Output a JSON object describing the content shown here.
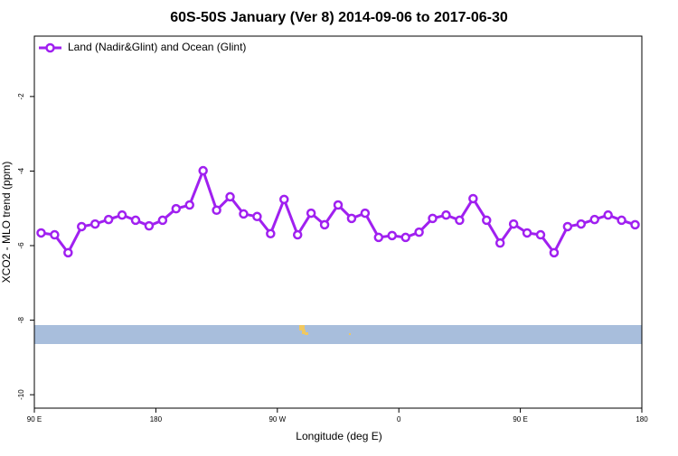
{
  "chart_data": {
    "type": "line",
    "title": "60S-50S January (Ver 8)   2014-09-06 to 2017-06-30",
    "x_label": "Longitude (deg E)",
    "y_label": "XCO2 - MLO trend (ppm)",
    "x": [
      95,
      105,
      115,
      125,
      135,
      145,
      155,
      165,
      175,
      185,
      195,
      205,
      215,
      225,
      235,
      245,
      255,
      265,
      275,
      285,
      295,
      305,
      315,
      325,
      335,
      345,
      355,
      365,
      375,
      385,
      395,
      405,
      415,
      425,
      435,
      445,
      455,
      465,
      475,
      485,
      495,
      505,
      515,
      525,
      535
    ],
    "series": [
      {
        "name": "Land (Nadir&Glint) and Ocean (Glint)",
        "color": "#a020f0",
        "values": [
          -5.66,
          -5.71,
          -6.19,
          -5.49,
          -5.42,
          -5.3,
          -5.18,
          -5.32,
          -5.47,
          -5.32,
          -5.01,
          -4.91,
          -3.99,
          -5.05,
          -4.69,
          -5.15,
          -5.22,
          -5.68,
          -4.76,
          -5.71,
          -5.13,
          -5.44,
          -4.91,
          -5.27,
          -5.13,
          -5.78,
          -5.73,
          -5.78,
          -5.64,
          -5.27,
          -5.18,
          -5.32,
          -4.74,
          -5.32,
          -5.93,
          -5.42,
          -5.66,
          -5.71,
          -6.19,
          -5.49,
          -5.42,
          -5.3,
          -5.18,
          -5.32,
          -5.44
        ]
      }
    ],
    "xlim": [
      90,
      540
    ],
    "xticks": [
      {
        "value": 90,
        "label": "90 E"
      },
      {
        "value": 180,
        "label": "180"
      },
      {
        "value": 270,
        "label": "90 W"
      },
      {
        "value": 360,
        "label": "0"
      },
      {
        "value": 450,
        "label": "90 E"
      },
      {
        "value": 540,
        "label": "180"
      }
    ],
    "ylim": [
      -10.36,
      -0.38
    ],
    "yticks": [
      -10,
      -8,
      -6,
      -4,
      -2
    ],
    "legend": "top-left"
  }
}
